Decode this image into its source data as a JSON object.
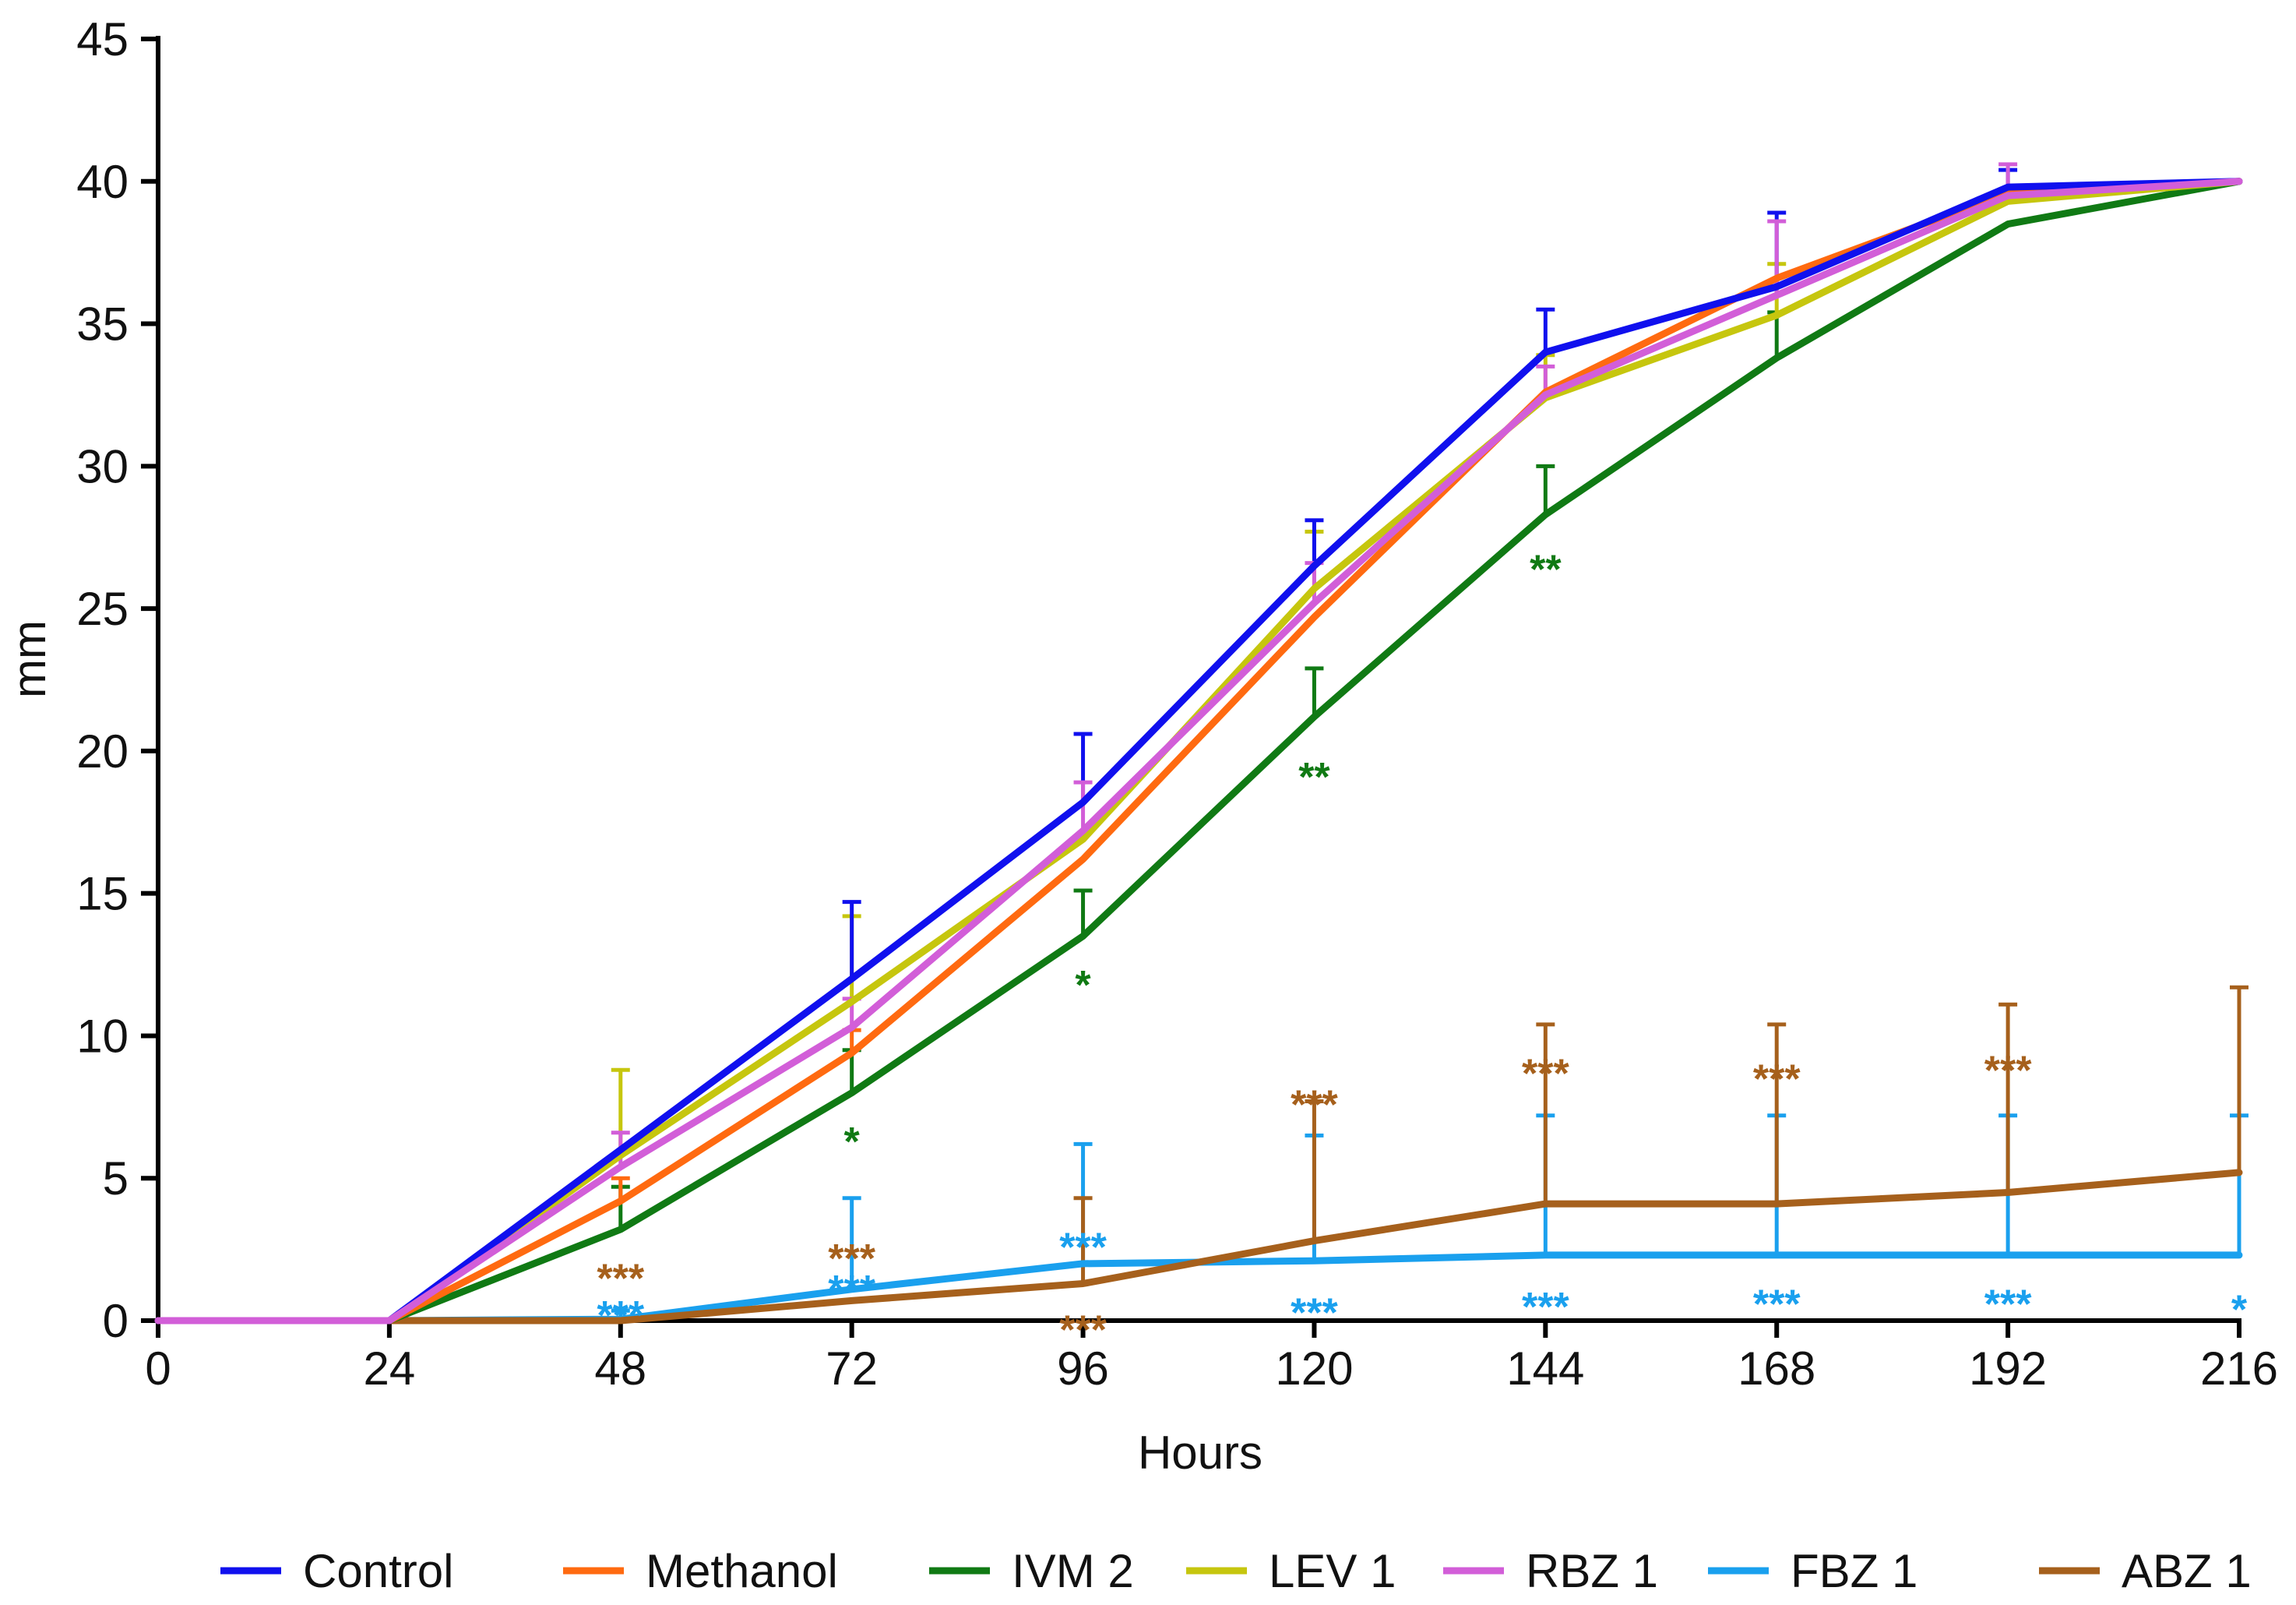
{
  "chart_data": {
    "type": "line",
    "title": "",
    "xlabel": "Hours",
    "ylabel": "mm",
    "xlim": [
      0,
      216
    ],
    "ylim": [
      0,
      45
    ],
    "x": [
      0,
      24,
      48,
      72,
      96,
      120,
      144,
      168,
      192,
      216
    ],
    "x_ticks": [
      "0",
      "24",
      "48",
      "72",
      "96",
      "120",
      "144",
      "168",
      "192",
      "216"
    ],
    "y_ticks": [
      "0",
      "5",
      "10",
      "15",
      "20",
      "25",
      "30",
      "35",
      "40",
      "45"
    ],
    "legend_position": "bottom",
    "series": [
      {
        "name": "Control",
        "color": "#1010ee",
        "values": [
          0,
          0,
          6.0,
          12.0,
          18.2,
          26.5,
          34.0,
          36.3,
          39.8,
          40.0
        ],
        "err": [
          0,
          0,
          0,
          2.7,
          2.4,
          1.6,
          1.5,
          2.6,
          0.6,
          0
        ]
      },
      {
        "name": "Methanol",
        "color": "#ff6a10",
        "values": [
          0,
          0,
          4.2,
          9.4,
          16.2,
          24.7,
          32.6,
          36.6,
          39.6,
          40.0
        ],
        "err": [
          0,
          0,
          0.8,
          0.8,
          0,
          0,
          0,
          0,
          0,
          0
        ]
      },
      {
        "name": "IVM 2",
        "color": "#107a14",
        "values": [
          0,
          0,
          3.2,
          8.0,
          13.5,
          21.2,
          28.3,
          33.8,
          38.5,
          40.0
        ],
        "err": [
          0,
          0,
          1.5,
          1.5,
          1.6,
          1.7,
          1.7,
          1.6,
          0,
          0
        ]
      },
      {
        "name": "LEV 1",
        "color": "#c6c60e",
        "values": [
          0,
          0,
          5.8,
          11.2,
          16.9,
          25.7,
          32.4,
          35.3,
          39.3,
          40.0
        ],
        "err": [
          0,
          0,
          3.0,
          3.0,
          0,
          2.0,
          1.5,
          1.8,
          0,
          0
        ]
      },
      {
        "name": "RBZ 1",
        "color": "#d25ed8",
        "values": [
          0,
          0,
          5.4,
          10.3,
          17.2,
          25.2,
          32.5,
          36.0,
          39.5,
          40.0
        ],
        "err": [
          0,
          0,
          1.2,
          1.0,
          1.7,
          1.4,
          1.0,
          2.6,
          1.1,
          0
        ]
      },
      {
        "name": "FBZ 1",
        "color": "#1aa0ee",
        "values": [
          0,
          0,
          0.05,
          1.1,
          2.0,
          2.1,
          2.3,
          2.3,
          2.3,
          2.3
        ],
        "err": [
          0,
          0,
          0.3,
          3.2,
          4.2,
          4.4,
          4.9,
          4.9,
          4.9,
          4.9
        ]
      },
      {
        "name": "ABZ 1",
        "color": "#a6601c",
        "values": [
          0,
          0,
          0,
          0.7,
          1.3,
          2.8,
          4.1,
          4.1,
          4.5,
          5.2
        ],
        "err": [
          0,
          0,
          0,
          0,
          3.0,
          4.9,
          6.3,
          6.3,
          6.6,
          6.5
        ]
      }
    ],
    "annotations": [
      {
        "text": "***",
        "x": 48,
        "y": 1.6,
        "color": "#a6601c"
      },
      {
        "text": "***",
        "x": 48,
        "y": 0.3,
        "color": "#1aa0ee"
      },
      {
        "text": "***",
        "x": 72,
        "y": 2.3,
        "color": "#a6601c"
      },
      {
        "text": "***",
        "x": 72,
        "y": 1.2,
        "color": "#1aa0ee"
      },
      {
        "text": "*",
        "x": 72,
        "y": 6.4,
        "color": "#107a14"
      },
      {
        "text": "***",
        "x": 96,
        "y": 2.7,
        "color": "#1aa0ee"
      },
      {
        "text": "***",
        "x": 96,
        "y": -0.2,
        "color": "#a6601c"
      },
      {
        "text": "*",
        "x": 96,
        "y": 11.9,
        "color": "#107a14"
      },
      {
        "text": "**",
        "x": 120,
        "y": 19.2,
        "color": "#107a14"
      },
      {
        "text": "***",
        "x": 120,
        "y": 7.7,
        "color": "#a6601c"
      },
      {
        "text": "***",
        "x": 120,
        "y": 0.4,
        "color": "#1aa0ee"
      },
      {
        "text": "**",
        "x": 144,
        "y": 26.5,
        "color": "#107a14"
      },
      {
        "text": "***",
        "x": 144,
        "y": 8.8,
        "color": "#a6601c"
      },
      {
        "text": "***",
        "x": 144,
        "y": 0.6,
        "color": "#1aa0ee"
      },
      {
        "text": "***",
        "x": 168,
        "y": 8.6,
        "color": "#a6601c"
      },
      {
        "text": "***",
        "x": 168,
        "y": 0.7,
        "color": "#1aa0ee"
      },
      {
        "text": "***",
        "x": 192,
        "y": 8.9,
        "color": "#a6601c"
      },
      {
        "text": "***",
        "x": 192,
        "y": 0.7,
        "color": "#1aa0ee"
      },
      {
        "text": "*",
        "x": 216,
        "y": 0.5,
        "color": "#1aa0ee"
      }
    ]
  }
}
